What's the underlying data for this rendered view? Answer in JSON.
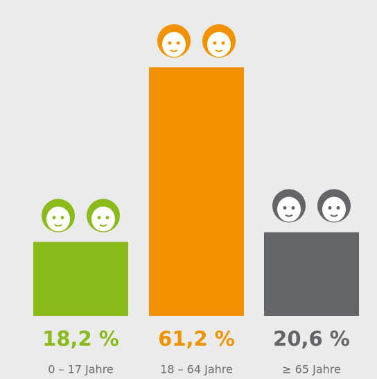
{
  "chart_data": {
    "type": "bar",
    "categories": [
      "0 – 17 Jahre",
      "18 – 64 Jahre",
      "≥ 65 Jahre"
    ],
    "values": [
      18.2,
      61.2,
      20.6
    ],
    "value_labels": [
      "18,2 %",
      "61,2 %",
      "20,6 %"
    ],
    "colors": [
      "#8aba1c",
      "#f39200",
      "#646569"
    ]
  }
}
